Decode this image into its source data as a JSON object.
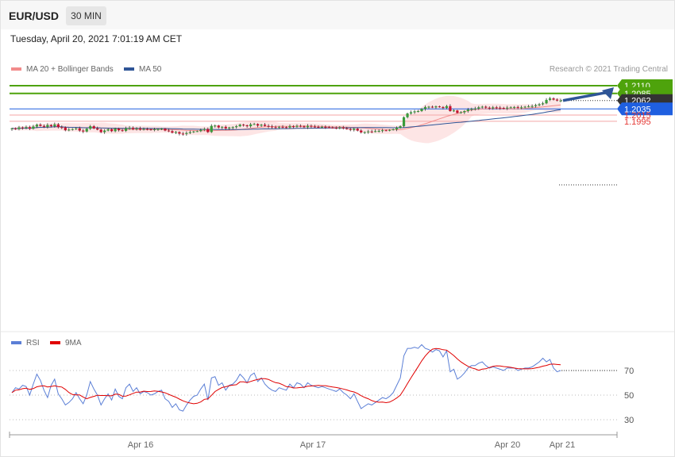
{
  "header": {
    "symbol": "EUR/USD",
    "timeframe": "30 MIN"
  },
  "datetime": "Tuesday, April 20, 2021 7:01:19 AM CET",
  "credit": "Research © 2021 Trading Central",
  "legend_main": [
    {
      "label": "MA 20 + Bollinger Bands",
      "color": "#f28b8b"
    },
    {
      "label": "MA 50",
      "color": "#2f5597"
    }
  ],
  "legend_rsi": [
    {
      "label": "RSI",
      "color": "#5b7fd6"
    },
    {
      "label": "9MA",
      "color": "#e00000"
    }
  ],
  "chart_data": {
    "type": "candlestick",
    "symbol": "EUR/USD",
    "interval": "30 MIN",
    "ylim": [
      1.192,
      1.213
    ],
    "x_ticks": [
      "Apr 16",
      "Apr 17",
      "Apr 20",
      "Apr 21"
    ],
    "price_levels": [
      {
        "value": 1.211,
        "label": "1.2110",
        "kind": "resistance",
        "color": "#4ea30c"
      },
      {
        "value": 1.2085,
        "label": "1.2085",
        "kind": "resistance",
        "color": "#4ea30c"
      },
      {
        "value": 1.2062,
        "label": "1.2062",
        "kind": "last",
        "color": "#333333"
      },
      {
        "value": 1.2035,
        "label": "1.2035",
        "kind": "pivot",
        "color": "#1f5fe0"
      },
      {
        "value": 1.2015,
        "label": "1.2015",
        "kind": "support",
        "color": "#e53935"
      },
      {
        "value": 1.1995,
        "label": "1.1995",
        "kind": "support",
        "color": "#e53935"
      }
    ],
    "arrow": {
      "from": 1.2062,
      "to": 1.211
    },
    "candles_close": [
      1.1972,
      1.197,
      1.1975,
      1.1973,
      1.1976,
      1.1971,
      1.1978,
      1.1984,
      1.198,
      1.1977,
      1.1983,
      1.1979,
      1.1985,
      1.1976,
      1.1975,
      1.1966,
      1.1968,
      1.197,
      1.1972,
      1.1965,
      1.1962,
      1.1971,
      1.1979,
      1.1972,
      1.1968,
      1.196,
      1.1965,
      1.1969,
      1.1963,
      1.1971,
      1.1966,
      1.1964,
      1.1972,
      1.1974,
      1.197,
      1.1972,
      1.1968,
      1.197,
      1.1969,
      1.1968,
      1.1969,
      1.197,
      1.1971,
      1.1965,
      1.1963,
      1.1958,
      1.196,
      1.1955,
      1.1954,
      1.1957,
      1.196,
      1.1962,
      1.1963,
      1.1967,
      1.197,
      1.196,
      1.198,
      1.1981,
      1.1975,
      1.1977,
      1.1972,
      1.1975,
      1.1976,
      1.1979,
      1.1984,
      1.1982,
      1.1979,
      1.1985,
      1.1986,
      1.1981,
      1.1984,
      1.198,
      1.1978,
      1.1976,
      1.1975,
      1.1977,
      1.1976,
      1.1975,
      1.1979,
      1.1977,
      1.198,
      1.1979,
      1.1976,
      1.198,
      1.1978,
      1.1977,
      1.1976,
      1.1977,
      1.1976,
      1.1975,
      1.1974,
      1.1973,
      1.1975,
      1.1972,
      1.197,
      1.1967,
      1.1971,
      1.1965,
      1.1959,
      1.196,
      1.1962,
      1.1961,
      1.1963,
      1.1964,
      1.1966,
      1.1965,
      1.1967,
      1.1969,
      1.1974,
      1.1979,
      1.2008,
      1.202,
      1.2024,
      1.2027,
      1.2028,
      1.2035,
      1.2041,
      1.2042,
      1.204,
      1.2043,
      1.2041,
      1.2038,
      1.2044,
      1.2028,
      1.203,
      1.2022,
      1.2024,
      1.2028,
      1.2033,
      1.2035,
      1.2036,
      1.204,
      1.2042,
      1.2039,
      1.2037,
      1.204,
      1.2039,
      1.2038,
      1.2037,
      1.2039,
      1.204,
      1.2041,
      1.2039,
      1.204,
      1.2042,
      1.2043,
      1.2044,
      1.2047,
      1.205,
      1.2053,
      1.2064,
      1.2069,
      1.2065,
      1.2062,
      1.2062
    ],
    "rsi": [
      52,
      56,
      55,
      58,
      57,
      50,
      59,
      67,
      62,
      54,
      48,
      58,
      63,
      51,
      47,
      42,
      44,
      47,
      52,
      47,
      43,
      50,
      61,
      55,
      50,
      42,
      47,
      51,
      46,
      55,
      49,
      47,
      56,
      59,
      53,
      56,
      51,
      53,
      52,
      50,
      51,
      53,
      54,
      47,
      45,
      40,
      43,
      38,
      37,
      42,
      46,
      49,
      50,
      55,
      59,
      46,
      64,
      65,
      58,
      60,
      54,
      58,
      59,
      62,
      67,
      64,
      60,
      66,
      68,
      61,
      64,
      59,
      56,
      54,
      53,
      56,
      55,
      54,
      59,
      56,
      60,
      59,
      56,
      60,
      58,
      57,
      56,
      57,
      56,
      55,
      54,
      53,
      55,
      52,
      50,
      47,
      51,
      45,
      39,
      41,
      43,
      42,
      44,
      46,
      48,
      47,
      49,
      52,
      58,
      64,
      82,
      88,
      88,
      89,
      88,
      91,
      88,
      87,
      85,
      87,
      86,
      81,
      86,
      69,
      71,
      63,
      65,
      68,
      72,
      74,
      74,
      76,
      77,
      74,
      72,
      73,
      72,
      71,
      70,
      72,
      72,
      72,
      70,
      71,
      72,
      72,
      73,
      75,
      77,
      80,
      77,
      79,
      72,
      69,
      70
    ],
    "rsi_ticks": [
      70,
      50,
      30
    ],
    "rsi_ylim": [
      15,
      93
    ]
  }
}
